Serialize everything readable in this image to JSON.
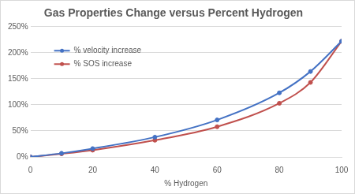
{
  "chart_data": {
    "type": "line",
    "title": "Gas Properties Change versus Percent Hydrogen",
    "x_label": "% Hydrogen",
    "x": [
      0,
      10,
      20,
      40,
      60,
      80,
      90,
      100
    ],
    "series": [
      {
        "name": "% velocity increase",
        "color": "#4472c4",
        "marker": "circle",
        "line_style": "solid",
        "values": [
          0,
          7,
          16,
          38,
          71,
          123,
          164,
          222
        ]
      },
      {
        "name": "% SOS increase",
        "color": "#c0504d",
        "marker": "circle",
        "line_style": "solid",
        "values": [
          0,
          6,
          13,
          32,
          58,
          103,
          143,
          222
        ]
      }
    ],
    "xlim": [
      0,
      100
    ],
    "xticks": [
      0,
      20,
      40,
      60,
      80,
      100
    ],
    "ylim": [
      0,
      250
    ],
    "yticks": [
      {
        "value": 0,
        "label": "0%"
      },
      {
        "value": 50,
        "label": "50%"
      },
      {
        "value": 100,
        "label": "100%"
      },
      {
        "value": 150,
        "label": "150%"
      },
      {
        "value": 200,
        "label": "200%"
      },
      {
        "value": 250,
        "label": "250%"
      }
    ],
    "grid": true,
    "legend": "upper left"
  }
}
